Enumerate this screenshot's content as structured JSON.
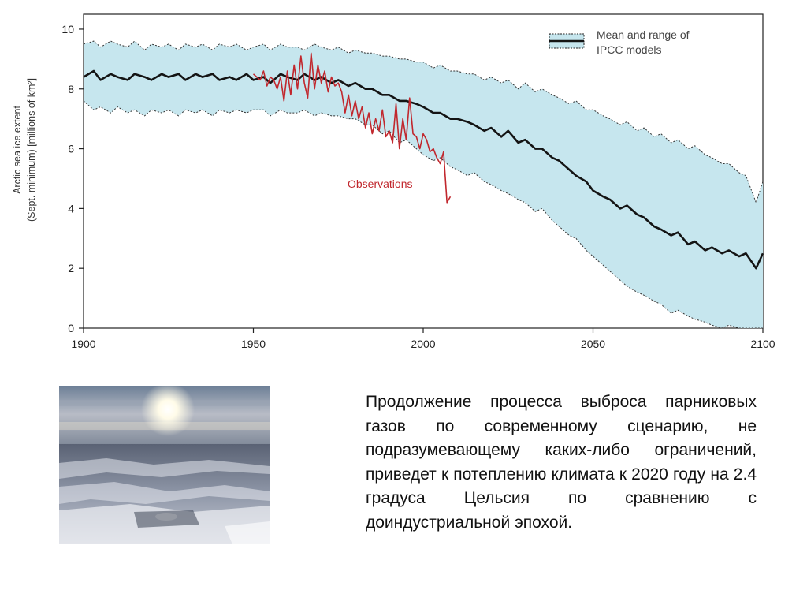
{
  "colors": {
    "band_fill": "#c6e6ee",
    "band_edge": "#333333",
    "mean_line": "#141414",
    "observations": "#c1272d",
    "axis": "#222222"
  },
  "legend": {
    "line1": "Mean and range of",
    "line2": "IPCC models"
  },
  "caption": "Продолжение процесса выброса парниковых газов по современному сценарию, не подразумевающему каких-либо ограничений, приведет к потеплению климата к 2020 году на 2.4 градуса Цельсия по сравнению с доиндустриальной эпохой.",
  "photo": {
    "description_icon": "sea-ice-photo"
  },
  "chart_data": {
    "type": "line",
    "ylabel_line1": "Arctic sea ice extent",
    "ylabel_line2": "(Sept. minimum) [millions of km²]",
    "xlim": [
      1900,
      2100
    ],
    "ylim": [
      0,
      10.5
    ],
    "x_ticks": [
      "1900",
      "1950",
      "2000",
      "2050",
      "2100"
    ],
    "y_ticks": [
      "0",
      "2",
      "4",
      "6",
      "8",
      "10"
    ],
    "annotation": "Observations",
    "series": [
      {
        "name": "Mean and range of IPCC models",
        "kind": "mean",
        "x": [
          1900,
          1903,
          1905,
          1908,
          1910,
          1913,
          1915,
          1918,
          1920,
          1923,
          1925,
          1928,
          1930,
          1933,
          1935,
          1938,
          1940,
          1943,
          1945,
          1948,
          1950,
          1953,
          1955,
          1958,
          1960,
          1963,
          1965,
          1968,
          1970,
          1973,
          1975,
          1978,
          1980,
          1983,
          1985,
          1988,
          1990,
          1993,
          1995,
          1998,
          2000,
          2003,
          2005,
          2008,
          2010,
          2013,
          2015,
          2018,
          2020,
          2023,
          2025,
          2028,
          2030,
          2033,
          2035,
          2038,
          2040,
          2043,
          2045,
          2048,
          2050,
          2053,
          2055,
          2058,
          2060,
          2063,
          2065,
          2068,
          2070,
          2073,
          2075,
          2078,
          2080,
          2083,
          2085,
          2088,
          2090,
          2093,
          2095,
          2098,
          2100
        ],
        "values": [
          8.4,
          8.6,
          8.3,
          8.5,
          8.4,
          8.3,
          8.5,
          8.4,
          8.3,
          8.5,
          8.4,
          8.5,
          8.3,
          8.5,
          8.4,
          8.5,
          8.3,
          8.4,
          8.3,
          8.5,
          8.3,
          8.4,
          8.2,
          8.5,
          8.4,
          8.3,
          8.5,
          8.3,
          8.4,
          8.2,
          8.3,
          8.1,
          8.2,
          8.0,
          8.0,
          7.8,
          7.8,
          7.6,
          7.6,
          7.5,
          7.4,
          7.2,
          7.2,
          7.0,
          7.0,
          6.9,
          6.8,
          6.6,
          6.7,
          6.4,
          6.6,
          6.2,
          6.3,
          6.0,
          6.0,
          5.7,
          5.6,
          5.3,
          5.1,
          4.9,
          4.6,
          4.4,
          4.3,
          4.0,
          4.1,
          3.8,
          3.7,
          3.4,
          3.3,
          3.1,
          3.2,
          2.8,
          2.9,
          2.6,
          2.7,
          2.5,
          2.6,
          2.4,
          2.5,
          2.0,
          2.5
        ]
      },
      {
        "name": "range-upper",
        "kind": "upper",
        "x": [
          1900,
          1903,
          1905,
          1908,
          1910,
          1913,
          1915,
          1918,
          1920,
          1923,
          1925,
          1928,
          1930,
          1933,
          1935,
          1938,
          1940,
          1943,
          1945,
          1948,
          1950,
          1953,
          1955,
          1958,
          1960,
          1963,
          1965,
          1968,
          1970,
          1973,
          1975,
          1978,
          1980,
          1983,
          1985,
          1988,
          1990,
          1993,
          1995,
          1998,
          2000,
          2003,
          2005,
          2008,
          2010,
          2013,
          2015,
          2018,
          2020,
          2023,
          2025,
          2028,
          2030,
          2033,
          2035,
          2038,
          2040,
          2043,
          2045,
          2048,
          2050,
          2053,
          2055,
          2058,
          2060,
          2063,
          2065,
          2068,
          2070,
          2073,
          2075,
          2078,
          2080,
          2083,
          2085,
          2088,
          2090,
          2093,
          2095,
          2098,
          2100
        ],
        "values": [
          9.5,
          9.6,
          9.4,
          9.6,
          9.5,
          9.4,
          9.6,
          9.3,
          9.5,
          9.4,
          9.5,
          9.3,
          9.5,
          9.4,
          9.5,
          9.3,
          9.5,
          9.4,
          9.5,
          9.3,
          9.4,
          9.5,
          9.3,
          9.5,
          9.4,
          9.4,
          9.3,
          9.5,
          9.4,
          9.3,
          9.4,
          9.2,
          9.3,
          9.2,
          9.2,
          9.1,
          9.1,
          9.0,
          9.0,
          8.9,
          8.9,
          8.7,
          8.8,
          8.6,
          8.6,
          8.5,
          8.5,
          8.3,
          8.4,
          8.2,
          8.3,
          8.0,
          8.2,
          7.9,
          8.0,
          7.8,
          7.7,
          7.5,
          7.6,
          7.3,
          7.3,
          7.1,
          7.0,
          6.8,
          6.9,
          6.6,
          6.7,
          6.4,
          6.5,
          6.2,
          6.3,
          6.0,
          6.1,
          5.8,
          5.7,
          5.5,
          5.5,
          5.2,
          5.1,
          4.2,
          4.9
        ]
      },
      {
        "name": "range-lower",
        "kind": "lower",
        "x": [
          1900,
          1903,
          1905,
          1908,
          1910,
          1913,
          1915,
          1918,
          1920,
          1923,
          1925,
          1928,
          1930,
          1933,
          1935,
          1938,
          1940,
          1943,
          1945,
          1948,
          1950,
          1953,
          1955,
          1958,
          1960,
          1963,
          1965,
          1968,
          1970,
          1973,
          1975,
          1978,
          1980,
          1983,
          1985,
          1988,
          1990,
          1993,
          1995,
          1998,
          2000,
          2003,
          2005,
          2008,
          2010,
          2013,
          2015,
          2018,
          2020,
          2023,
          2025,
          2028,
          2030,
          2033,
          2035,
          2038,
          2040,
          2043,
          2045,
          2048,
          2050,
          2053,
          2055,
          2058,
          2060,
          2063,
          2065,
          2068,
          2070,
          2073,
          2075,
          2078,
          2080,
          2083,
          2085,
          2088,
          2090,
          2093,
          2095,
          2098,
          2100
        ],
        "values": [
          7.6,
          7.3,
          7.4,
          7.2,
          7.4,
          7.2,
          7.3,
          7.1,
          7.3,
          7.2,
          7.3,
          7.1,
          7.3,
          7.2,
          7.3,
          7.1,
          7.3,
          7.2,
          7.3,
          7.2,
          7.3,
          7.3,
          7.1,
          7.3,
          7.2,
          7.2,
          7.3,
          7.1,
          7.2,
          7.1,
          7.1,
          7.0,
          7.0,
          6.8,
          6.8,
          6.5,
          6.6,
          6.2,
          6.3,
          6.0,
          5.8,
          5.6,
          5.7,
          5.4,
          5.3,
          5.1,
          5.2,
          4.9,
          4.8,
          4.6,
          4.5,
          4.3,
          4.2,
          3.9,
          4.0,
          3.6,
          3.4,
          3.1,
          3.0,
          2.6,
          2.4,
          2.1,
          1.9,
          1.6,
          1.4,
          1.2,
          1.1,
          0.9,
          0.8,
          0.5,
          0.6,
          0.4,
          0.3,
          0.2,
          0.1,
          0.0,
          0.1,
          0.0,
          0.0,
          0.0,
          0.0
        ]
      },
      {
        "name": "Observations",
        "kind": "observations",
        "x": [
          1950,
          1952,
          1953,
          1954,
          1955,
          1956,
          1957,
          1958,
          1959,
          1960,
          1961,
          1962,
          1963,
          1964,
          1965,
          1966,
          1967,
          1968,
          1969,
          1970,
          1971,
          1972,
          1973,
          1974,
          1975,
          1976,
          1977,
          1978,
          1979,
          1980,
          1981,
          1982,
          1983,
          1984,
          1985,
          1986,
          1987,
          1988,
          1989,
          1990,
          1991,
          1992,
          1993,
          1994,
          1995,
          1996,
          1997,
          1998,
          1999,
          2000,
          2001,
          2002,
          2003,
          2004,
          2005,
          2006,
          2007,
          2008
        ],
        "values": [
          8.5,
          8.3,
          8.6,
          8.1,
          8.4,
          8.3,
          8.0,
          8.4,
          7.6,
          8.6,
          7.8,
          8.8,
          8.0,
          9.1,
          8.2,
          7.7,
          9.2,
          8.0,
          8.8,
          8.2,
          8.6,
          7.9,
          8.4,
          8.1,
          8.2,
          7.9,
          7.2,
          7.8,
          7.1,
          7.6,
          7.0,
          7.4,
          6.7,
          7.2,
          6.5,
          7.0,
          6.6,
          7.3,
          6.4,
          6.6,
          6.2,
          7.5,
          6.0,
          7.0,
          6.3,
          7.7,
          6.5,
          6.4,
          6.0,
          6.5,
          6.3,
          5.9,
          6.0,
          5.7,
          5.5,
          5.9,
          4.2,
          4.4
        ]
      }
    ]
  }
}
